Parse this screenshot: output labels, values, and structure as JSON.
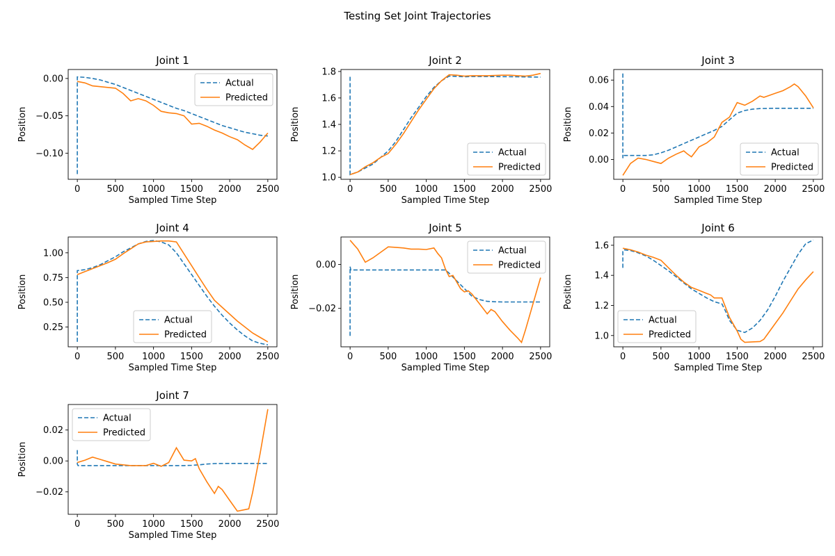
{
  "figure": {
    "title": "Testing Set Joint Trajectories"
  },
  "legend_labels": [
    "Actual",
    "Predicted"
  ],
  "colors": {
    "actual": "#1f77b4",
    "predicted": "#ff7f0e"
  },
  "chart_data": [
    {
      "type": "line",
      "title": "Joint 1",
      "xlabel": "Sampled Time Step",
      "ylabel": "Position",
      "xlim": [
        -120,
        2620
      ],
      "ylim": [
        -0.135,
        0.012
      ],
      "xticks": [
        0,
        500,
        1000,
        1500,
        2000,
        2500
      ],
      "yticks": [
        -0.1,
        -0.05,
        0.0
      ],
      "ytick_labels": [
        "−0.10",
        "−0.05",
        "0.00"
      ],
      "legend": "upper right",
      "grid": false,
      "series": [
        {
          "name": "Actual",
          "style": "dashed",
          "x": [
            0,
            0,
            10,
            100,
            200,
            300,
            400,
            500,
            600,
            700,
            800,
            900,
            1000,
            1100,
            1200,
            1300,
            1400,
            1500,
            1600,
            1700,
            1800,
            1900,
            2000,
            2100,
            2200,
            2300,
            2400,
            2500
          ],
          "y": [
            -0.128,
            0.002,
            0.002,
            0.0015,
            0.0,
            -0.002,
            -0.005,
            -0.008,
            -0.012,
            -0.016,
            -0.02,
            -0.024,
            -0.028,
            -0.032,
            -0.036,
            -0.04,
            -0.043,
            -0.047,
            -0.051,
            -0.055,
            -0.059,
            -0.063,
            -0.066,
            -0.069,
            -0.072,
            -0.074,
            -0.076,
            -0.077
          ]
        },
        {
          "name": "Predicted",
          "style": "solid",
          "x": [
            0,
            100,
            200,
            300,
            400,
            500,
            600,
            700,
            800,
            900,
            1000,
            1100,
            1200,
            1300,
            1400,
            1500,
            1600,
            1700,
            1800,
            1900,
            2000,
            2100,
            2200,
            2300,
            2400,
            2500
          ],
          "y": [
            -0.004,
            -0.006,
            -0.01,
            -0.011,
            -0.012,
            -0.013,
            -0.02,
            -0.03,
            -0.027,
            -0.03,
            -0.036,
            -0.044,
            -0.046,
            -0.047,
            -0.05,
            -0.061,
            -0.06,
            -0.064,
            -0.069,
            -0.073,
            -0.078,
            -0.082,
            -0.089,
            -0.095,
            -0.085,
            -0.073
          ]
        }
      ]
    },
    {
      "type": "line",
      "title": "Joint 2",
      "xlabel": "Sampled Time Step",
      "ylabel": "Position",
      "xlim": [
        -120,
        2620
      ],
      "ylim": [
        0.985,
        1.815
      ],
      "xticks": [
        0,
        500,
        1000,
        1500,
        2000,
        2500
      ],
      "yticks": [
        1.0,
        1.2,
        1.4,
        1.6,
        1.8
      ],
      "ytick_labels": [
        "1.0",
        "1.2",
        "1.4",
        "1.6",
        "1.8"
      ],
      "legend": "lower right",
      "grid": false,
      "series": [
        {
          "name": "Actual",
          "style": "dashed",
          "x": [
            0,
            0,
            100,
            200,
            300,
            400,
            500,
            600,
            700,
            800,
            900,
            1000,
            1100,
            1200,
            1300,
            1400,
            1500,
            1600,
            1800,
            2000,
            2200,
            2500
          ],
          "y": [
            1.76,
            1.02,
            1.04,
            1.07,
            1.1,
            1.15,
            1.2,
            1.27,
            1.36,
            1.45,
            1.53,
            1.61,
            1.68,
            1.73,
            1.765,
            1.763,
            1.76,
            1.762,
            1.762,
            1.761,
            1.76,
            1.757
          ]
        },
        {
          "name": "Predicted",
          "style": "solid",
          "x": [
            0,
            100,
            200,
            300,
            400,
            500,
            600,
            700,
            800,
            900,
            1000,
            1100,
            1200,
            1300,
            1400,
            1500,
            1600,
            1700,
            1800,
            1900,
            2000,
            2100,
            2200,
            2300,
            2400,
            2500
          ],
          "y": [
            1.02,
            1.04,
            1.08,
            1.11,
            1.15,
            1.18,
            1.25,
            1.33,
            1.42,
            1.51,
            1.59,
            1.67,
            1.73,
            1.775,
            1.772,
            1.765,
            1.768,
            1.768,
            1.768,
            1.77,
            1.772,
            1.772,
            1.768,
            1.765,
            1.772,
            1.785
          ]
        }
      ]
    },
    {
      "type": "line",
      "title": "Joint 3",
      "xlabel": "Sampled Time Step",
      "ylabel": "Position",
      "xlim": [
        -120,
        2620
      ],
      "ylim": [
        -0.015,
        0.068
      ],
      "xticks": [
        0,
        500,
        1000,
        1500,
        2000,
        2500
      ],
      "yticks": [
        0.0,
        0.02,
        0.04,
        0.06
      ],
      "ytick_labels": [
        "0.00",
        "0.02",
        "0.04",
        "0.06"
      ],
      "legend": "lower right",
      "grid": false,
      "series": [
        {
          "name": "Actual",
          "style": "dashed",
          "x": [
            0,
            0,
            10,
            100,
            200,
            300,
            400,
            500,
            600,
            700,
            800,
            900,
            1000,
            1100,
            1200,
            1300,
            1400,
            1500,
            1600,
            1700,
            1800,
            2000,
            2200,
            2500
          ],
          "y": [
            0.065,
            0.001,
            0.003,
            0.003,
            0.003,
            0.003,
            0.0035,
            0.005,
            0.007,
            0.0095,
            0.012,
            0.0145,
            0.017,
            0.0195,
            0.022,
            0.025,
            0.03,
            0.035,
            0.037,
            0.038,
            0.0385,
            0.0387,
            0.0387,
            0.0387
          ]
        },
        {
          "name": "Predicted",
          "style": "solid",
          "x": [
            0,
            100,
            200,
            300,
            400,
            500,
            600,
            700,
            800,
            850,
            900,
            1000,
            1100,
            1200,
            1300,
            1400,
            1500,
            1600,
            1700,
            1800,
            1850,
            1900,
            2000,
            2100,
            2200,
            2250,
            2300,
            2400,
            2500
          ],
          "y": [
            -0.012,
            -0.003,
            0.001,
            0.0,
            -0.0015,
            -0.003,
            0.001,
            0.004,
            0.0065,
            0.004,
            0.002,
            0.0095,
            0.0125,
            0.017,
            0.028,
            0.032,
            0.043,
            0.041,
            0.044,
            0.048,
            0.047,
            0.048,
            0.05,
            0.052,
            0.055,
            0.057,
            0.055,
            0.048,
            0.039
          ]
        }
      ]
    },
    {
      "type": "line",
      "title": "Joint 4",
      "xlabel": "Sampled Time Step",
      "ylabel": "Position",
      "xlim": [
        -120,
        2620
      ],
      "ylim": [
        0.05,
        1.16
      ],
      "xticks": [
        0,
        500,
        1000,
        1500,
        2000,
        2500
      ],
      "yticks": [
        0.25,
        0.5,
        0.75,
        1.0
      ],
      "ytick_labels": [
        "0.25",
        "0.50",
        "0.75",
        "1.00"
      ],
      "legend": "lower center",
      "grid": false,
      "series": [
        {
          "name": "Actual",
          "style": "dashed",
          "x": [
            0,
            0,
            100,
            200,
            300,
            400,
            500,
            600,
            700,
            800,
            900,
            1000,
            1100,
            1200,
            1300,
            1400,
            1500,
            1600,
            1700,
            1800,
            1900,
            2000,
            2100,
            2200,
            2300,
            2400,
            2500
          ],
          "y": [
            0.1,
            0.82,
            0.83,
            0.85,
            0.88,
            0.92,
            0.96,
            1.01,
            1.05,
            1.09,
            1.115,
            1.125,
            1.11,
            1.08,
            1.0,
            0.89,
            0.78,
            0.67,
            0.56,
            0.46,
            0.37,
            0.29,
            0.22,
            0.16,
            0.11,
            0.085,
            0.07
          ]
        },
        {
          "name": "Predicted",
          "style": "solid",
          "x": [
            0,
            100,
            200,
            300,
            400,
            500,
            600,
            700,
            800,
            900,
            1000,
            1100,
            1200,
            1300,
            1400,
            1500,
            1600,
            1700,
            1800,
            1900,
            2000,
            2100,
            2200,
            2300,
            2400,
            2500
          ],
          "y": [
            0.78,
            0.81,
            0.84,
            0.87,
            0.9,
            0.935,
            0.99,
            1.04,
            1.09,
            1.11,
            1.115,
            1.12,
            1.12,
            1.11,
            0.99,
            0.87,
            0.75,
            0.63,
            0.52,
            0.45,
            0.38,
            0.31,
            0.25,
            0.19,
            0.145,
            0.1
          ]
        }
      ]
    },
    {
      "type": "line",
      "title": "Joint 5",
      "xlabel": "Sampled Time Step",
      "ylabel": "Position",
      "xlim": [
        -120,
        2620
      ],
      "ylim": [
        -0.0375,
        0.0125
      ],
      "xticks": [
        0,
        500,
        1000,
        1500,
        2000,
        2500
      ],
      "yticks": [
        -0.02,
        0.0
      ],
      "ytick_labels": [
        "−0.02",
        "0.00"
      ],
      "legend": "upper right",
      "grid": false,
      "series": [
        {
          "name": "Actual",
          "style": "dashed",
          "x": [
            0,
            0,
            10,
            100,
            300,
            500,
            700,
            900,
            1100,
            1250,
            1300,
            1400,
            1500,
            1600,
            1700,
            1800,
            1900,
            2000,
            2200,
            2500
          ],
          "y": [
            -0.0325,
            -0.001,
            -0.0025,
            -0.0025,
            -0.0025,
            -0.0025,
            -0.0025,
            -0.0025,
            -0.0025,
            -0.0025,
            -0.004,
            -0.0075,
            -0.011,
            -0.0145,
            -0.016,
            -0.0168,
            -0.017,
            -0.0171,
            -0.0171,
            -0.0171
          ]
        },
        {
          "name": "Predicted",
          "style": "solid",
          "x": [
            0,
            100,
            200,
            300,
            400,
            500,
            600,
            700,
            800,
            900,
            1000,
            1100,
            1150,
            1200,
            1250,
            1300,
            1350,
            1400,
            1450,
            1500,
            1550,
            1600,
            1700,
            1800,
            1850,
            1900,
            2000,
            2100,
            2200,
            2250,
            2300,
            2400,
            2500
          ],
          "y": [
            0.011,
            0.007,
            0.001,
            0.003,
            0.0055,
            0.008,
            0.0078,
            0.0075,
            0.007,
            0.007,
            0.0068,
            0.0075,
            0.005,
            0.003,
            -0.002,
            -0.0055,
            -0.005,
            -0.008,
            -0.011,
            -0.0125,
            -0.012,
            -0.0135,
            -0.018,
            -0.0225,
            -0.0205,
            -0.0215,
            -0.026,
            -0.03,
            -0.0335,
            -0.0355,
            -0.03,
            -0.018,
            -0.006
          ]
        }
      ]
    },
    {
      "type": "line",
      "title": "Joint 6",
      "xlabel": "Sampled Time Step",
      "ylabel": "Position",
      "xlim": [
        -120,
        2620
      ],
      "ylim": [
        0.925,
        1.655
      ],
      "xticks": [
        0,
        500,
        1000,
        1500,
        2000,
        2500
      ],
      "yticks": [
        1.0,
        1.2,
        1.4,
        1.6
      ],
      "ytick_labels": [
        "1.0",
        "1.2",
        "1.4",
        "1.6"
      ],
      "legend": "lower left",
      "grid": false,
      "series": [
        {
          "name": "Actual",
          "style": "dashed",
          "x": [
            0,
            0,
            10,
            100,
            200,
            300,
            400,
            500,
            600,
            700,
            800,
            900,
            1000,
            1100,
            1200,
            1300,
            1350,
            1400,
            1500,
            1600,
            1700,
            1800,
            1900,
            2000,
            2100,
            2200,
            2300,
            2400,
            2500
          ],
          "y": [
            1.45,
            1.56,
            1.57,
            1.565,
            1.55,
            1.53,
            1.5,
            1.465,
            1.43,
            1.39,
            1.35,
            1.31,
            1.28,
            1.25,
            1.225,
            1.21,
            1.16,
            1.1,
            1.035,
            1.02,
            1.05,
            1.1,
            1.17,
            1.26,
            1.36,
            1.45,
            1.54,
            1.61,
            1.635
          ]
        },
        {
          "name": "Predicted",
          "style": "solid",
          "x": [
            0,
            100,
            200,
            300,
            400,
            500,
            600,
            700,
            800,
            900,
            1000,
            1100,
            1150,
            1200,
            1300,
            1400,
            1500,
            1550,
            1600,
            1700,
            1800,
            1850,
            1900,
            2000,
            2100,
            2200,
            2300,
            2400,
            2500
          ],
          "y": [
            1.58,
            1.57,
            1.555,
            1.535,
            1.52,
            1.5,
            1.45,
            1.4,
            1.355,
            1.32,
            1.3,
            1.28,
            1.27,
            1.25,
            1.25,
            1.12,
            1.03,
            0.975,
            0.955,
            0.958,
            0.96,
            0.975,
            1.01,
            1.08,
            1.15,
            1.23,
            1.31,
            1.37,
            1.425
          ]
        }
      ]
    },
    {
      "type": "line",
      "title": "Joint 7",
      "xlabel": "Sampled Time Step",
      "ylabel": "Position",
      "xlim": [
        -120,
        2620
      ],
      "ylim": [
        -0.0345,
        0.0365
      ],
      "xticks": [
        0,
        500,
        1000,
        1500,
        2000,
        2500
      ],
      "yticks": [
        -0.02,
        0.0,
        0.02
      ],
      "ytick_labels": [
        "−0.02",
        "0.00",
        "0.02"
      ],
      "legend": "upper left",
      "grid": false,
      "series": [
        {
          "name": "Actual",
          "style": "dashed",
          "x": [
            0,
            0,
            10,
            500,
            1000,
            1300,
            1400,
            1500,
            1600,
            1700,
            1800,
            2000,
            2200,
            2500
          ],
          "y": [
            0.007,
            -0.002,
            -0.003,
            -0.003,
            -0.003,
            -0.003,
            -0.003,
            -0.0028,
            -0.0025,
            -0.002,
            -0.0017,
            -0.0016,
            -0.0016,
            -0.0016
          ]
        },
        {
          "name": "Predicted",
          "style": "solid",
          "x": [
            0,
            100,
            200,
            300,
            400,
            500,
            600,
            700,
            800,
            900,
            1000,
            1100,
            1200,
            1300,
            1400,
            1500,
            1550,
            1600,
            1700,
            1800,
            1850,
            1900,
            2000,
            2100,
            2200,
            2250,
            2300,
            2400,
            2500
          ],
          "y": [
            -0.001,
            0.0005,
            0.0025,
            0.001,
            -0.0005,
            -0.002,
            -0.0025,
            -0.003,
            -0.003,
            -0.003,
            -0.0015,
            -0.0035,
            -0.001,
            0.0085,
            0.0005,
            0.0,
            0.0015,
            -0.005,
            -0.0135,
            -0.021,
            -0.0165,
            -0.0185,
            -0.0255,
            -0.0325,
            -0.0315,
            -0.031,
            -0.0205,
            0.005,
            0.0335
          ]
        }
      ]
    }
  ]
}
